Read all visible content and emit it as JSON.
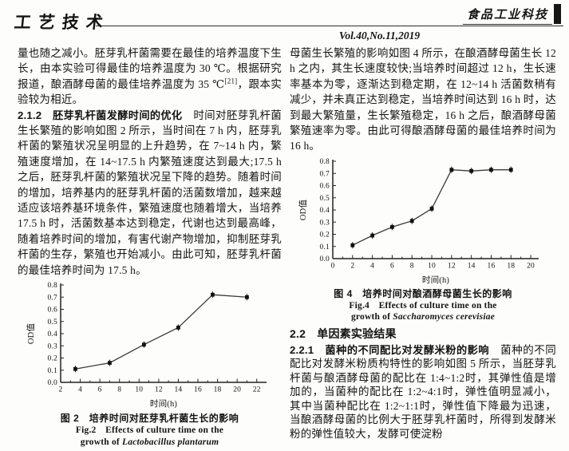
{
  "header": {
    "section_label": "工艺技术",
    "journal_name": "食品工业科技",
    "volume_info": "Vol.40,No.11,2019"
  },
  "left_column": {
    "para1_text": "量也随之减小。胚芽乳杆菌需要在最佳的培养温度下生长，由本实验可得最佳的培养温度为 30 ℃。根据研究报道，酿酒酵母菌的最佳培养温度为 35 ℃",
    "para1_ref": "[21]",
    "para1_tail": "，跟本实验较为相近。",
    "para2_heading": "2.1.2　胚芽乳杆菌发酵时间的优化",
    "para2_text": "　时间对胚芽乳杆菌生长繁殖的影响如图 2 所示，当时间在 7 h 内，胚芽乳杆菌的繁殖状况呈明显的上升趋势，在 7~14 h 内，繁殖速度增加，在 14~17.5 h 内繁殖速度达到最大;17.5 h 之后，胚芽乳杆菌的繁殖状况呈下降的趋势。随着时间的增加，培养基内的胚芽乳杆菌的活菌数增加，越来越适应该培养基环境条件，繁殖速度也随着增大，当培养 17.5 h 时，活菌数基本达到稳定，代谢也达到最高峰，随着培养时间的增加，有害代谢产物增加，抑制胚芽乳杆菌的生存，繁殖也开始减小。由此可知，胚芽乳杆菌的最佳培养时间为 17.5 h。"
  },
  "right_column": {
    "para1_text": "母菌生长繁殖的影响如图 4 所示，在酿酒酵母菌生长 12 h 之内，其生长速度较快;当培养时间超过 12 h，生长速率基本为零，逐渐达到稳定期，在 12~14 h 活菌数稍有减少，并未真正达到稳定，当培养时间达到 16 h 时，达到最大繁殖量，生长繁殖稳定，16 h 之后，酿酒酵母菌繁殖速率为零。由此可得酿酒酵母菌的最佳培养时间为 16 h。",
    "section_heading": "2.2　单因素实验结果",
    "para2_heading": "2.2.1　菌种的不同配比对发酵米粉的影响",
    "para2_text": "　菌种的不同配比对发酵米粉质构特性的影响如图 5 所示，当胚芽乳杆菌与酿酒酵母菌的配比在 1:4~1:2时，其弹性值是增加的，当菌种的配比在 1:2~4:1时，弹性值明显减小，其中当菌种配比在 1:2~1:1时，弹性值下降最为迅速，当酿酒酵母菌的比例大于胚芽乳杆菌时，所得到发酵米粉的弹性值较大，发酵可使淀粉"
  },
  "chart_data": [
    {
      "id": "fig2",
      "type": "line",
      "title": "培养时间对胚芽乳杆菌生长的影响",
      "xlabel": "时间(h)",
      "ylabel": "OD值",
      "xlim": [
        2,
        23
      ],
      "ylim": [
        0,
        0.8
      ],
      "xticks": [
        2,
        4,
        6,
        8,
        10,
        12,
        14,
        16,
        18,
        20,
        22
      ],
      "yticks": [
        0,
        0.1,
        0.2,
        0.3,
        0.4,
        0.5,
        0.6,
        0.7,
        0.8
      ],
      "x": [
        3.5,
        7,
        10.5,
        14,
        17.5,
        21
      ],
      "y": [
        0.11,
        0.16,
        0.31,
        0.45,
        0.72,
        0.7
      ],
      "line_color": "#3a3a3a",
      "marker": "square",
      "grid": "off",
      "legend": "none",
      "caption": {
        "cn": "图 2　培养时间对胚芽乳杆菌生长的影响",
        "en_line1": "Fig.2　Effects of culture time on the",
        "en_line2_prefix": "growth of ",
        "species": "Lactobacillus plantarum"
      }
    },
    {
      "id": "fig4",
      "type": "line",
      "title": "培养时间对酿酒酵母菌生长的影响",
      "xlabel": "时间(h)",
      "ylabel": "OD值",
      "xlim": [
        0,
        20.8
      ],
      "ylim": [
        0,
        0.8
      ],
      "xticks": [
        0,
        2,
        4,
        6,
        8,
        10,
        12,
        14,
        16,
        18,
        20
      ],
      "yticks": [
        0,
        0.1,
        0.2,
        0.3,
        0.4,
        0.5,
        0.6,
        0.7,
        0.8
      ],
      "x": [
        2,
        4,
        6,
        8,
        10,
        12,
        14,
        16,
        18
      ],
      "y": [
        0.11,
        0.19,
        0.26,
        0.31,
        0.41,
        0.73,
        0.72,
        0.73,
        0.73
      ],
      "line_color": "#3a3a3a",
      "marker": "square",
      "grid": "off",
      "legend": "none",
      "caption": {
        "cn": "图 4　培养时间对酿酒酵母菌生长的影响",
        "en_line1": "Fig.4　Effects of culture time on the",
        "en_line2_prefix": "growth of ",
        "species": "Saccharomyces cerevisiae"
      }
    }
  ]
}
